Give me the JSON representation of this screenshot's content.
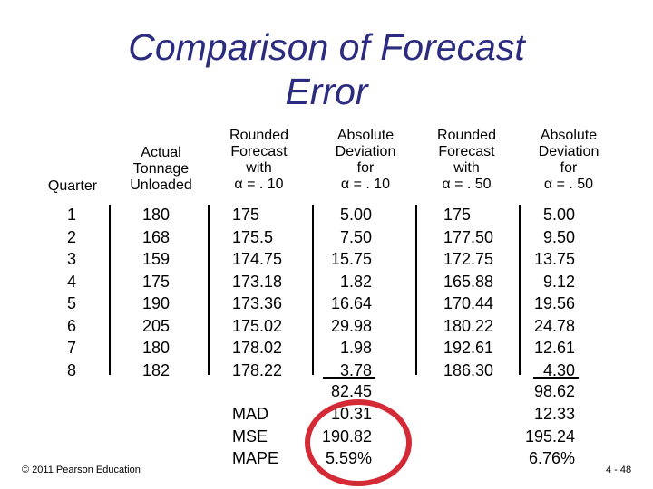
{
  "slide": {
    "title": "Comparison of Forecast\nError",
    "headers": {
      "quarter": "Quarter",
      "actual": "Actual\nTonnage\nUnloaded",
      "forecast_10": "Rounded\nForecast\nwith\nα = . 10",
      "deviation_10": "Absolute\nDeviation\nfor\nα = . 10",
      "forecast_50": "Rounded\nForecast\nwith\nα = . 50",
      "deviation_50": "Absolute\nDeviation\nfor\nα = . 50"
    },
    "rows": [
      {
        "quarter": "1",
        "actual": "180",
        "f10": "175",
        "d10": "5.00",
        "f50": "175",
        "d50": "5.00"
      },
      {
        "quarter": "2",
        "actual": "168",
        "f10": "175.5",
        "d10": "7.50",
        "f50": "177.50",
        "d50": "9.50"
      },
      {
        "quarter": "3",
        "actual": "159",
        "f10": "174.75",
        "d10": "15.75",
        "f50": "172.75",
        "d50": "13.75"
      },
      {
        "quarter": "4",
        "actual": "175",
        "f10": "173.18",
        "d10": "1.82",
        "f50": "165.88",
        "d50": "9.12"
      },
      {
        "quarter": "5",
        "actual": "190",
        "f10": "173.36",
        "d10": "16.64",
        "f50": "170.44",
        "d50": "19.56"
      },
      {
        "quarter": "6",
        "actual": "205",
        "f10": "175.02",
        "d10": "29.98",
        "f50": "180.22",
        "d50": "24.78"
      },
      {
        "quarter": "7",
        "actual": "180",
        "f10": "178.02",
        "d10": "1.98",
        "f50": "192.61",
        "d50": "12.61"
      },
      {
        "quarter": "8",
        "actual": "182",
        "f10": "178.22",
        "d10": "3.78",
        "f50": "186.30",
        "d50": "4.30"
      }
    ],
    "summary": {
      "labels": [
        "MAD",
        "MSE",
        "MAPE"
      ],
      "total_10": "82.45",
      "values_10": [
        "10.31",
        "190.82",
        "5.59%"
      ],
      "total_50": "98.62",
      "values_50": [
        "12.33",
        "195.24",
        "6.76%"
      ]
    },
    "highlight_color": "#d42a36",
    "copyright": "© 2011 Pearson Education",
    "page_number": "4 - 48"
  }
}
